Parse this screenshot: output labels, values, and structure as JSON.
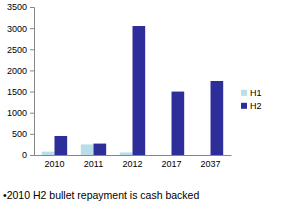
{
  "chart_data": {
    "type": "bar",
    "categories": [
      "2010",
      "2011",
      "2012",
      "2017",
      "2037"
    ],
    "series": [
      {
        "name": "H1",
        "color": "#b9dde9",
        "values": [
          80,
          250,
          60,
          0,
          0
        ]
      },
      {
        "name": "H2",
        "color": "#2e2e9a",
        "values": [
          450,
          270,
          3050,
          1500,
          1750
        ]
      }
    ],
    "ylim": [
      0,
      3500
    ],
    "yticks": [
      0,
      500,
      1000,
      1500,
      2000,
      2500,
      3000,
      3500
    ],
    "grid": false,
    "legend": "right",
    "annotations": [
      "•2010 H2 bullet repayment is cash backed"
    ]
  }
}
